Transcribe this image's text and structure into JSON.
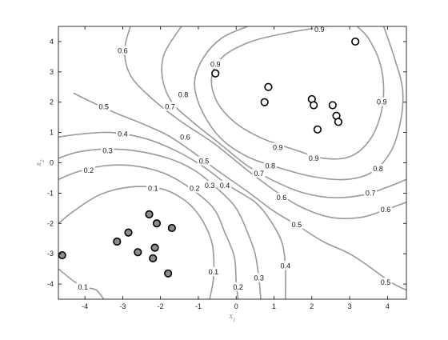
{
  "chart_data": {
    "type": "contour",
    "xlim": [
      -4.7,
      4.5
    ],
    "ylim": [
      -4.5,
      4.5
    ],
    "xlabel": "x1",
    "ylabel": "x2",
    "xticks": [
      -4,
      -3,
      -2,
      -1,
      0,
      1,
      2,
      3,
      4
    ],
    "yticks": [
      -4,
      -3,
      -2,
      -1,
      0,
      1,
      2,
      3,
      4
    ],
    "xtick_labels": [
      "-4",
      "-3",
      "-2",
      "-1",
      "0",
      "1",
      "2",
      "3",
      "4"
    ],
    "ytick_labels": [
      "-4",
      "-3",
      "-2",
      "-1",
      "0",
      "1",
      "2",
      "3",
      "4"
    ],
    "grid": false,
    "contour_levels": [
      {
        "level": 0.1,
        "labels": [
          {
            "text": "0.1",
            "x": -2.2,
            "y": -0.85
          },
          {
            "text": "0.1",
            "x": -0.6,
            "y": -3.6
          },
          {
            "text": "0.1",
            "x": -4.05,
            "y": -4.1
          }
        ],
        "paths": [
          [
            [
              -4.7,
              -2.0
            ],
            [
              -4.3,
              -1.6
            ],
            [
              -3.6,
              -1.05
            ],
            [
              -2.8,
              -0.8
            ],
            [
              -2.0,
              -0.85
            ],
            [
              -1.4,
              -1.2
            ],
            [
              -1.0,
              -1.7
            ],
            [
              -0.7,
              -2.4
            ],
            [
              -0.6,
              -3.0
            ],
            [
              -0.6,
              -3.8
            ],
            [
              -0.7,
              -4.5
            ]
          ],
          [
            [
              -4.7,
              -3.5
            ],
            [
              -4.3,
              -3.9
            ],
            [
              -4.0,
              -4.1
            ],
            [
              -3.7,
              -4.2
            ],
            [
              -3.5,
              -4.5
            ]
          ]
        ]
      },
      {
        "level": 0.2,
        "labels": [
          {
            "text": "0.2",
            "x": -3.9,
            "y": -0.25
          },
          {
            "text": "0.2",
            "x": -1.1,
            "y": -0.85
          },
          {
            "text": "0.2",
            "x": 0.05,
            "y": -4.1
          }
        ],
        "paths": [
          [
            [
              -4.7,
              -0.55
            ],
            [
              -4.2,
              -0.3
            ],
            [
              -3.5,
              -0.1
            ],
            [
              -2.7,
              -0.1
            ],
            [
              -1.9,
              -0.35
            ],
            [
              -1.2,
              -0.85
            ],
            [
              -0.6,
              -1.5
            ],
            [
              -0.3,
              -2.3
            ],
            [
              -0.05,
              -3.1
            ],
            [
              0.0,
              -3.9
            ],
            [
              0.05,
              -4.5
            ]
          ]
        ]
      },
      {
        "level": 0.3,
        "labels": [
          {
            "text": "0.3",
            "x": -3.4,
            "y": 0.4
          },
          {
            "text": "0.3",
            "x": -0.7,
            "y": -0.75
          },
          {
            "text": "0.3",
            "x": 0.6,
            "y": -3.8
          }
        ],
        "paths": [
          [
            [
              -4.7,
              0.15
            ],
            [
              -4.2,
              0.35
            ],
            [
              -3.5,
              0.45
            ],
            [
              -2.7,
              0.4
            ],
            [
              -1.8,
              0.15
            ],
            [
              -1.1,
              -0.25
            ],
            [
              -0.5,
              -0.85
            ],
            [
              0.0,
              -1.5
            ],
            [
              0.3,
              -2.3
            ],
            [
              0.5,
              -3.0
            ],
            [
              0.6,
              -3.8
            ],
            [
              0.65,
              -4.5
            ]
          ]
        ]
      },
      {
        "level": 0.4,
        "labels": [
          {
            "text": "0.4",
            "x": -3.0,
            "y": 0.95
          },
          {
            "text": "0.4",
            "x": -0.3,
            "y": -0.75
          },
          {
            "text": "0.4",
            "x": 1.3,
            "y": -3.4
          }
        ],
        "paths": [
          [
            [
              -4.7,
              0.85
            ],
            [
              -4.1,
              0.95
            ],
            [
              -3.3,
              1.0
            ],
            [
              -2.4,
              0.8
            ],
            [
              -1.6,
              0.4
            ],
            [
              -0.9,
              -0.1
            ],
            [
              -0.2,
              -0.75
            ],
            [
              0.5,
              -1.3
            ],
            [
              0.9,
              -1.9
            ],
            [
              1.2,
              -2.6
            ],
            [
              1.3,
              -3.4
            ],
            [
              1.3,
              -4.5
            ]
          ]
        ]
      },
      {
        "level": 0.5,
        "labels": [
          {
            "text": "0.5",
            "x": -3.5,
            "y": 1.85
          },
          {
            "text": "0.5",
            "x": -0.85,
            "y": 0.05
          },
          {
            "text": "0.5",
            "x": 1.6,
            "y": -2.05
          },
          {
            "text": "0.5",
            "x": 3.95,
            "y": -3.95
          }
        ],
        "paths": [
          [
            [
              -4.3,
              2.3
            ],
            [
              -3.9,
              2.05
            ],
            [
              -3.2,
              1.65
            ],
            [
              -2.5,
              1.3
            ],
            [
              -1.8,
              0.9
            ],
            [
              -1.2,
              0.4
            ],
            [
              -0.5,
              -0.25
            ],
            [
              0.3,
              -0.95
            ],
            [
              1.0,
              -1.6
            ],
            [
              1.6,
              -2.05
            ],
            [
              2.3,
              -2.6
            ],
            [
              3.0,
              -3.0
            ],
            [
              3.6,
              -3.5
            ],
            [
              4.1,
              -3.95
            ],
            [
              4.5,
              -4.2
            ]
          ]
        ]
      },
      {
        "level": 0.6,
        "labels": [
          {
            "text": "0.6",
            "x": -3.0,
            "y": 3.7
          },
          {
            "text": "0.6",
            "x": -1.35,
            "y": 0.85
          },
          {
            "text": "0.6",
            "x": 1.2,
            "y": -1.15
          },
          {
            "text": "0.6",
            "x": 3.95,
            "y": -1.55
          }
        ],
        "paths": [
          [
            [
              -2.8,
              4.5
            ],
            [
              -2.95,
              3.7
            ],
            [
              -2.8,
              2.9
            ],
            [
              -2.3,
              2.2
            ],
            [
              -1.5,
              1.4
            ],
            [
              -0.6,
              0.65
            ],
            [
              0.3,
              -0.25
            ],
            [
              1.0,
              -0.9
            ],
            [
              1.7,
              -1.45
            ],
            [
              2.5,
              -1.8
            ],
            [
              3.3,
              -1.8
            ],
            [
              3.95,
              -1.55
            ],
            [
              4.5,
              -1.3
            ]
          ]
        ]
      },
      {
        "level": 0.7,
        "labels": [
          {
            "text": "0.7",
            "x": -1.75,
            "y": 1.85
          },
          {
            "text": "0.7",
            "x": 0.6,
            "y": -0.35
          },
          {
            "text": "0.7",
            "x": 3.55,
            "y": -1.0
          }
        ],
        "paths": [
          [
            [
              -1.45,
              4.5
            ],
            [
              -1.9,
              3.6
            ],
            [
              -1.95,
              2.8
            ],
            [
              -1.7,
              2.0
            ],
            [
              -1.2,
              1.4
            ],
            [
              -0.5,
              0.7
            ],
            [
              0.3,
              -0.1
            ],
            [
              1.0,
              -0.6
            ],
            [
              1.8,
              -1.0
            ],
            [
              2.6,
              -1.15
            ],
            [
              3.4,
              -1.05
            ],
            [
              4.0,
              -0.8
            ],
            [
              4.5,
              -0.55
            ]
          ]
        ]
      },
      {
        "level": 0.8,
        "labels": [
          {
            "text": "0.8",
            "x": -1.4,
            "y": 2.25
          },
          {
            "text": "0.8",
            "x": 0.9,
            "y": -0.1
          },
          {
            "text": "0.8",
            "x": 3.75,
            "y": -0.2
          }
        ],
        "paths": [
          [
            [
              0.3,
              4.5
            ],
            [
              -0.4,
              4.1
            ],
            [
              -0.9,
              3.4
            ],
            [
              -1.1,
              2.6
            ],
            [
              -0.9,
              1.7
            ],
            [
              -0.4,
              0.8
            ],
            [
              0.3,
              0.2
            ],
            [
              1.1,
              -0.15
            ],
            [
              2.0,
              -0.45
            ],
            [
              2.9,
              -0.55
            ],
            [
              3.6,
              -0.3
            ],
            [
              4.1,
              0.4
            ],
            [
              4.35,
              1.4
            ],
            [
              4.4,
              2.4
            ],
            [
              4.2,
              3.4
            ],
            [
              3.9,
              4.5
            ]
          ]
        ]
      },
      {
        "level": 0.9,
        "labels": [
          {
            "text": "0.9",
            "x": -0.55,
            "y": 3.25
          },
          {
            "text": "0.9",
            "x": 2.2,
            "y": 4.4
          },
          {
            "text": "0.9",
            "x": 3.85,
            "y": 2.0
          },
          {
            "text": "0.9",
            "x": 1.1,
            "y": 0.5
          },
          {
            "text": "0.9",
            "x": 2.05,
            "y": 0.15
          }
        ],
        "paths": [
          [
            [
              2.4,
              4.5
            ],
            [
              1.4,
              4.3
            ],
            [
              0.4,
              4.0
            ],
            [
              -0.35,
              3.5
            ],
            [
              -0.65,
              2.8
            ],
            [
              -0.5,
              2.0
            ],
            [
              0.0,
              1.3
            ],
            [
              0.7,
              0.8
            ],
            [
              1.5,
              0.45
            ],
            [
              2.3,
              0.15
            ],
            [
              3.0,
              0.2
            ],
            [
              3.5,
              0.7
            ],
            [
              3.8,
              1.5
            ],
            [
              3.9,
              2.4
            ],
            [
              3.8,
              3.3
            ],
            [
              3.5,
              4.1
            ],
            [
              3.2,
              4.5
            ]
          ]
        ]
      }
    ],
    "series": [
      {
        "marker": "open-circle",
        "points": [
          [
            3.15,
            4.0
          ],
          [
            -0.55,
            2.95
          ],
          [
            0.85,
            2.5
          ],
          [
            0.75,
            2.0
          ],
          [
            2.0,
            2.1
          ],
          [
            2.05,
            1.9
          ],
          [
            2.55,
            1.9
          ],
          [
            2.65,
            1.55
          ],
          [
            2.7,
            1.35
          ],
          [
            2.15,
            1.1
          ]
        ]
      },
      {
        "marker": "filled-circle",
        "points": [
          [
            -2.3,
            -1.7
          ],
          [
            -2.1,
            -2.0
          ],
          [
            -1.7,
            -2.15
          ],
          [
            -2.85,
            -2.3
          ],
          [
            -3.15,
            -2.6
          ],
          [
            -2.15,
            -2.8
          ],
          [
            -2.6,
            -2.95
          ],
          [
            -2.2,
            -3.15
          ],
          [
            -1.8,
            -3.65
          ],
          [
            -4.6,
            -3.05
          ]
        ]
      }
    ]
  },
  "colors": {
    "contour": "#999999",
    "axis": "#000000",
    "open_marker_fill": "#ffffff",
    "filled_marker_fill": "#8c8c8c"
  }
}
